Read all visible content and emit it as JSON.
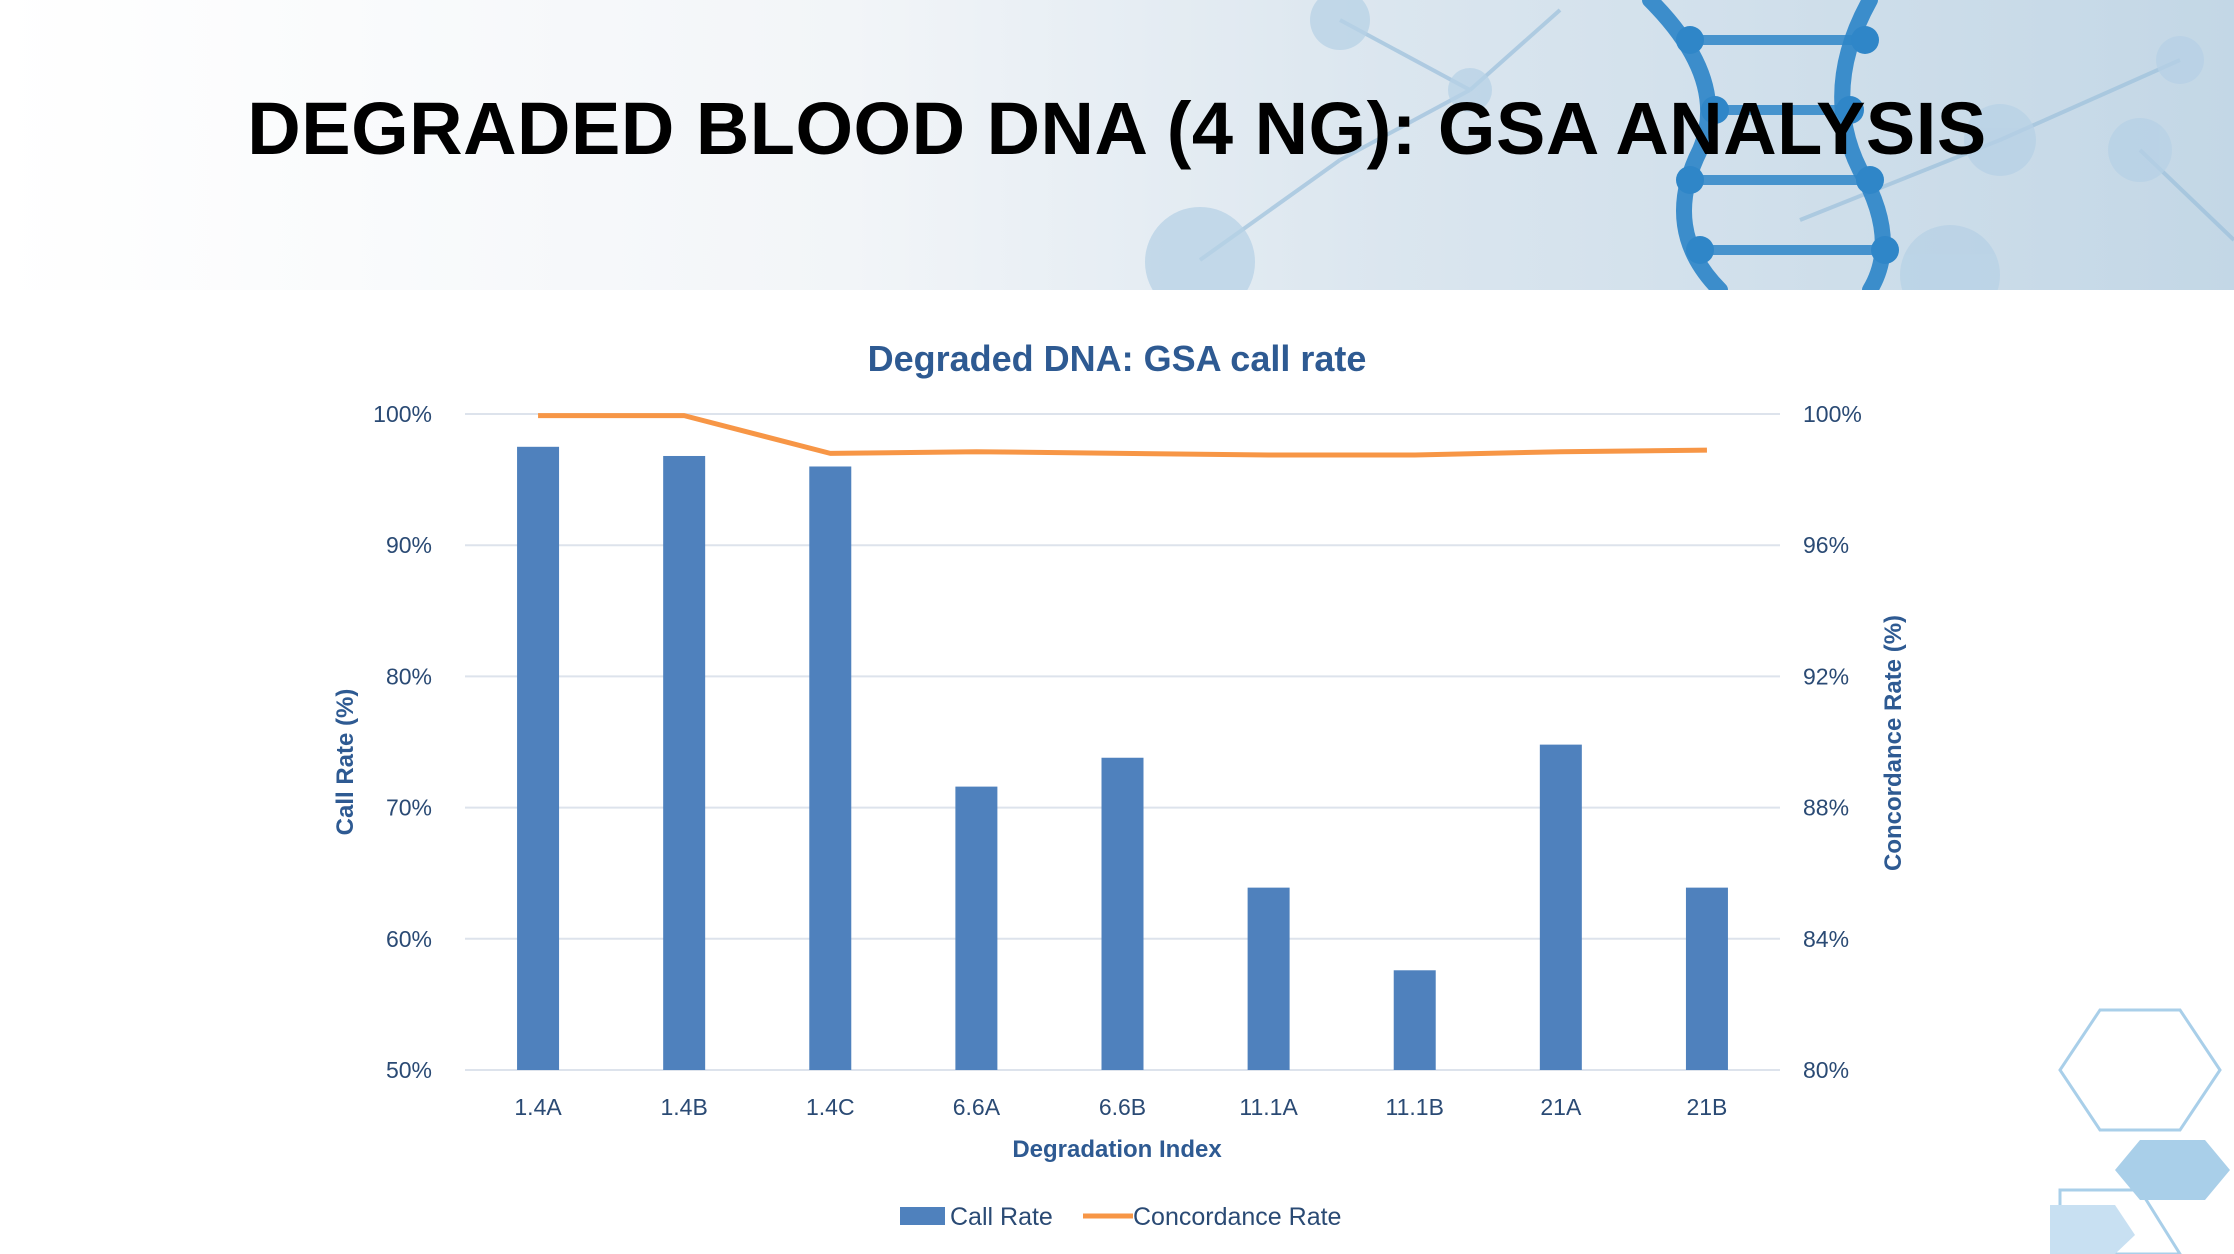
{
  "slide_title": "DEGRADED BLOOD DNA (4 NG): GSA ANALYSIS",
  "colors": {
    "bar": "#4f81bd",
    "line": "#f79646",
    "grid": "#dde3ec",
    "text": "#2a4a74",
    "title": "#2e5a92"
  },
  "chart_data": {
    "type": "bar",
    "title": "Degraded DNA: GSA call rate",
    "xlabel": "Degradation Index",
    "ylabel": "Call Rate (%)",
    "y2label": "Concordance Rate (%)",
    "categories": [
      "1.4A",
      "1.4B",
      "1.4C",
      "6.6A",
      "6.6B",
      "11.1A",
      "11.1B",
      "21A",
      "21B"
    ],
    "ylim": [
      50,
      100
    ],
    "y2lim": [
      80,
      100
    ],
    "yticks": [
      "50%",
      "60%",
      "70%",
      "80%",
      "90%",
      "100%"
    ],
    "y2ticks": [
      "80%",
      "84%",
      "88%",
      "92%",
      "96%",
      "100%"
    ],
    "grid": true,
    "legend_position": "bottom",
    "series": [
      {
        "name": "Call Rate",
        "type": "bar",
        "axis": "left",
        "values": [
          97.5,
          96.8,
          96.0,
          71.6,
          73.8,
          63.9,
          57.6,
          74.8,
          63.9
        ]
      },
      {
        "name": "Concordance Rate",
        "type": "line",
        "axis": "right",
        "values": [
          99.95,
          99.95,
          98.8,
          98.85,
          98.8,
          98.75,
          98.75,
          98.85,
          98.9
        ]
      }
    ]
  }
}
